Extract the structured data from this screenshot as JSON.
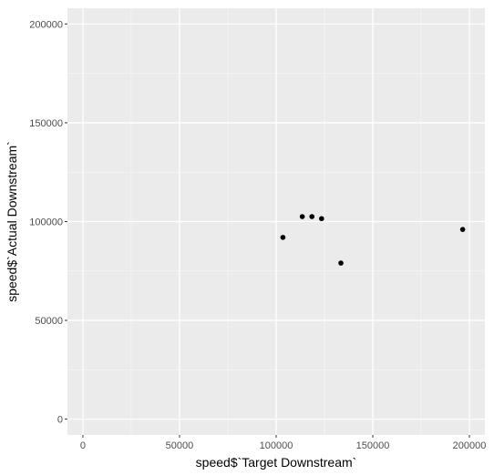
{
  "chart_data": {
    "type": "scatter",
    "title": "",
    "xlabel": "speed$`Target Downstream`",
    "ylabel": "speed$`Actual Downstream`",
    "xlim": [
      -8000,
      208000
    ],
    "ylim": [
      -8000,
      208000
    ],
    "x_ticks": [
      0,
      50000,
      100000,
      150000,
      200000
    ],
    "y_ticks": [
      0,
      50000,
      100000,
      150000,
      200000
    ],
    "x_tick_labels": [
      "0",
      "50000",
      "100000",
      "150000",
      "200000"
    ],
    "y_tick_labels": [
      "0",
      "50000",
      "100000",
      "150000",
      "200000"
    ],
    "grid": true,
    "legend": "none",
    "points": [
      {
        "x": 103500,
        "y": 92000
      },
      {
        "x": 113500,
        "y": 102500
      },
      {
        "x": 118500,
        "y": 102500
      },
      {
        "x": 123500,
        "y": 101500
      },
      {
        "x": 133500,
        "y": 79000
      },
      {
        "x": 196500,
        "y": 96000
      }
    ],
    "colors": {
      "panel_background": "#ebebeb",
      "grid_major": "#ffffff",
      "grid_minor": "#f5f5f5",
      "point": "#000000",
      "tick": "#333333"
    }
  }
}
